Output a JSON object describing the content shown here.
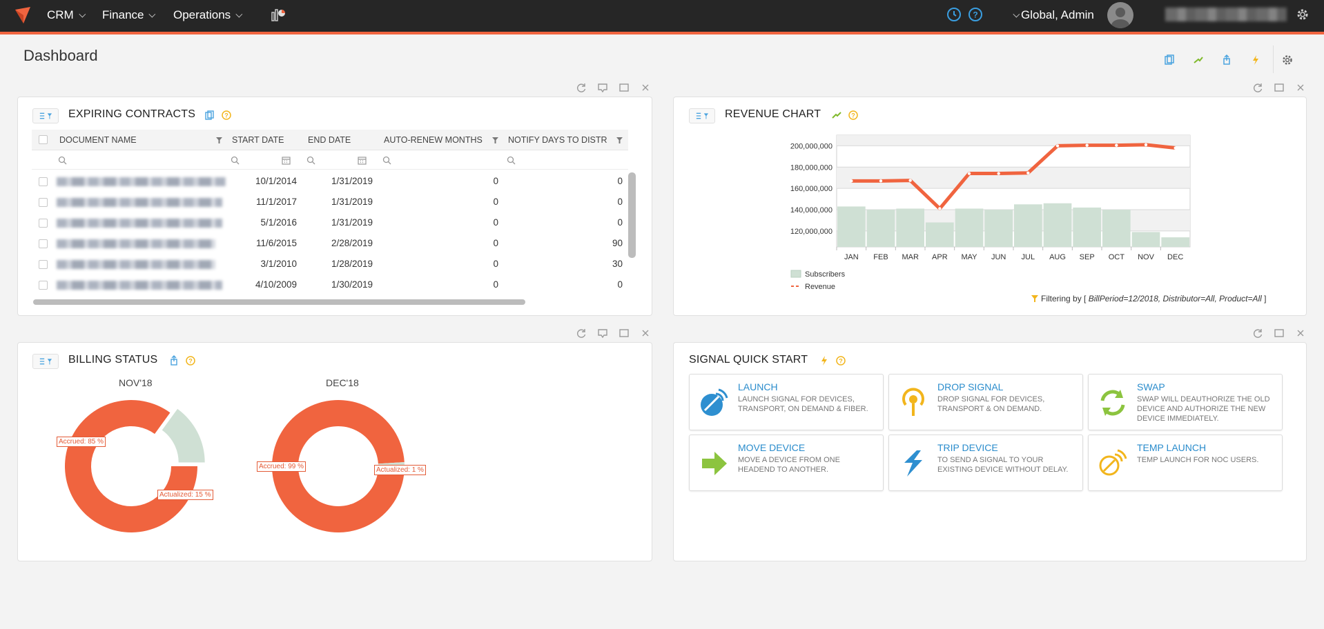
{
  "topbar": {
    "nav": [
      {
        "label": "CRM"
      },
      {
        "label": "Finance"
      },
      {
        "label": "Operations"
      }
    ],
    "user_label": "Global, Admin"
  },
  "page": {
    "title": "Dashboard"
  },
  "expiring_contracts": {
    "title": "EXPIRING CONTRACTS",
    "columns": [
      "DOCUMENT NAME",
      "START DATE",
      "END DATE",
      "AUTO-RENEW MONTHS",
      "NOTIFY DAYS TO DISTR"
    ],
    "rows": [
      {
        "start": "10/1/2014",
        "end": "1/31/2019",
        "auto_renew": "0",
        "notify": "0"
      },
      {
        "start": "11/1/2017",
        "end": "1/31/2019",
        "auto_renew": "0",
        "notify": "0"
      },
      {
        "start": "5/1/2016",
        "end": "1/31/2019",
        "auto_renew": "0",
        "notify": "0"
      },
      {
        "start": "11/6/2015",
        "end": "2/28/2019",
        "auto_renew": "0",
        "notify": "90"
      },
      {
        "start": "3/1/2010",
        "end": "1/28/2019",
        "auto_renew": "0",
        "notify": "30"
      },
      {
        "start": "4/10/2009",
        "end": "1/30/2019",
        "auto_renew": "0",
        "notify": "0"
      }
    ]
  },
  "revenue_chart": {
    "title": "REVENUE CHART",
    "filter_prefix": "Filtering by [ ",
    "filter_text": "BillPeriod=12/2018, Distributor=All, Product=All",
    "filter_suffix": " ]"
  },
  "billing_status": {
    "title": "BILLING STATUS"
  },
  "signal_quick_start": {
    "title": "SIGNAL QUICK START",
    "cards": [
      {
        "title": "LAUNCH",
        "desc": "LAUNCH SIGNAL FOR DEVICES, TRANSPORT, ON DEMAND & FIBER.",
        "icon": "satellite-dish-icon"
      },
      {
        "title": "DROP SIGNAL",
        "desc": "DROP SIGNAL FOR DEVICES, TRANSPORT & ON DEMAND.",
        "icon": "signal-drop-icon"
      },
      {
        "title": "SWAP",
        "desc": "SWAP WILL DEAUTHORIZE THE OLD DEVICE AND AUTHORIZE THE NEW DEVICE IMMEDIATELY.",
        "icon": "swap-arrows-icon"
      },
      {
        "title": "MOVE DEVICE",
        "desc": "MOVE A DEVICE FROM ONE HEADEND TO ANOTHER.",
        "icon": "arrow-right-icon"
      },
      {
        "title": "TRIP DEVICE",
        "desc": "TO SEND A SIGNAL TO YOUR EXISTING DEVICE WITHOUT DELAY.",
        "icon": "trip-bolt-icon"
      },
      {
        "title": "TEMP LAUNCH",
        "desc": "TEMP LAUNCH FOR NOC USERS.",
        "icon": "temp-satellite-icon"
      }
    ]
  },
  "colors": {
    "accent": "#f0643f",
    "topbar": "#262626",
    "link_blue": "#2a8ccc",
    "subscribers_bar": "#cfe0d4",
    "revenue_line": "#f0643f"
  },
  "chart_data": [
    {
      "type": "bar+line",
      "title": "REVENUE CHART",
      "categories": [
        "JAN",
        "FEB",
        "MAR",
        "APR",
        "MAY",
        "JUN",
        "JUL",
        "AUG",
        "SEP",
        "OCT",
        "NOV",
        "DEC"
      ],
      "y_ticks": [
        "120,000,000",
        "140,000,000",
        "160,000,000",
        "180,000,000",
        "200,000,000"
      ],
      "ylim": [
        105000000,
        210000000
      ],
      "series": [
        {
          "name": "Subscribers",
          "type": "bar",
          "values": [
            143000000,
            140000000,
            141000000,
            128000000,
            141000000,
            140000000,
            145000000,
            146000000,
            142000000,
            140000000,
            119000000,
            114000000
          ]
        },
        {
          "name": "Revenue",
          "type": "line",
          "values": [
            167000000,
            167000000,
            167500000,
            141000000,
            174000000,
            174000000,
            174500000,
            200000000,
            200500000,
            200500000,
            201000000,
            198000000
          ]
        }
      ],
      "legend": "bottom-left",
      "grid": true
    },
    {
      "type": "pie",
      "title": "NOV'18",
      "slices": [
        {
          "name": "Accrued",
          "value": 85,
          "label": "Accrued: 85 %"
        },
        {
          "name": "Actualized",
          "value": 15,
          "label": "Actualized: 15 %"
        }
      ]
    },
    {
      "type": "pie",
      "title": "DEC'18",
      "slices": [
        {
          "name": "Accrued",
          "value": 99,
          "label": "Accrued: 99 %"
        },
        {
          "name": "Actualized",
          "value": 1,
          "label": "Actualized: 1 %"
        }
      ]
    }
  ]
}
